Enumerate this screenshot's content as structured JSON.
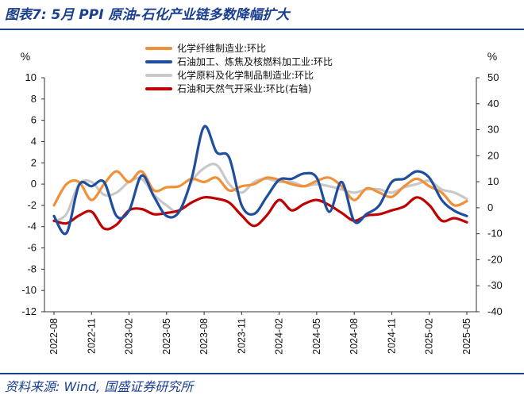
{
  "header": {
    "title": "图表7: 5月 PPI 原油-石化产业链多数降幅扩大"
  },
  "footer": {
    "source": "资料来源: Wind, 国盛证券研究所"
  },
  "chart_data": {
    "type": "line",
    "left_axis": {
      "unit": "%",
      "ylim": [
        -12,
        10
      ],
      "ticks": [
        10,
        8,
        6,
        4,
        2,
        0,
        -2,
        -4,
        -6,
        -8,
        -10,
        -12
      ]
    },
    "right_axis": {
      "unit": "%",
      "ylim": [
        -40,
        50
      ],
      "ticks": [
        50,
        40,
        30,
        20,
        10,
        0,
        -10,
        -20,
        -30,
        -40
      ]
    },
    "x": [
      "2022-08",
      "2022-09",
      "2022-10",
      "2022-11",
      "2022-12",
      "2023-01",
      "2023-02",
      "2023-03",
      "2023-04",
      "2023-05",
      "2023-06",
      "2023-07",
      "2023-08",
      "2023-09",
      "2023-10",
      "2023-11",
      "2023-12",
      "2024-01",
      "2024-02",
      "2024-03",
      "2024-04",
      "2024-05",
      "2024-06",
      "2024-07",
      "2024-08",
      "2024-09",
      "2024-10",
      "2024-11",
      "2024-12",
      "2025-01",
      "2025-02",
      "2025-03",
      "2025-04",
      "2025-05"
    ],
    "x_tick_labels": [
      "2022-08",
      "2022-11",
      "2023-02",
      "2023-05",
      "2023-08",
      "2023-11",
      "2024-02",
      "2024-05",
      "2024-08",
      "2024-11",
      "2025-02",
      "2025-05"
    ],
    "legend_position": "top",
    "series": [
      {
        "name": "化学纤维制造业:环比",
        "color": "#f0913a",
        "axis": "left",
        "values": [
          -2.0,
          0.0,
          0.2,
          -1.5,
          0.0,
          1.2,
          0.2,
          1.2,
          -0.6,
          -0.3,
          -0.2,
          0.5,
          0.2,
          0.6,
          -0.6,
          -0.2,
          0.0,
          0.6,
          0.4,
          0.0,
          -0.2,
          0.3,
          0.6,
          -0.2,
          -1.5,
          -0.4,
          -0.8,
          -1.2,
          -0.2,
          0.5,
          -0.2,
          -0.8,
          -2.0,
          -1.6
        ]
      },
      {
        "name": "石油加工、炼焦及核燃料加工业:环比",
        "color": "#1f4e9e",
        "axis": "left",
        "values": [
          -3.0,
          -4.6,
          -0.1,
          -0.2,
          0.2,
          -3.0,
          -2.5,
          0.8,
          -1.2,
          -3.0,
          -2.6,
          0.5,
          5.4,
          3.0,
          2.5,
          -2.0,
          -2.8,
          -1.2,
          0.4,
          0.5,
          1.0,
          0.6,
          -2.6,
          0.2,
          -3.5,
          -2.8,
          -2.0,
          0.2,
          0.5,
          1.2,
          0.6,
          -1.5,
          -2.5,
          -3.0
        ]
      },
      {
        "name": "化学原料及化学制品制造业:环比",
        "color": "#c8c8c8",
        "axis": "left",
        "values": [
          -3.5,
          -2.8,
          0.0,
          0.2,
          -1.0,
          -0.8,
          0.2,
          0.5,
          -1.0,
          -2.0,
          -2.5,
          0.2,
          1.5,
          1.8,
          0.0,
          -0.8,
          0.2,
          0.5,
          0.2,
          0.2,
          -0.2,
          0.0,
          -0.2,
          -0.5,
          -0.8,
          -0.5,
          -0.5,
          -0.8,
          -0.3,
          0.0,
          0.3,
          -0.5,
          -0.8,
          -1.4
        ]
      },
      {
        "name": "石油和天然气开采业:环比(右轴)",
        "color": "#c00000",
        "axis": "right",
        "values": [
          -5.0,
          -6.0,
          -3.0,
          -1.5,
          -8.0,
          -6.5,
          -1.0,
          -0.5,
          -2.5,
          -2.0,
          -1.0,
          2.0,
          4.0,
          3.5,
          2.0,
          -3.0,
          -7.0,
          -3.0,
          3.0,
          -1.0,
          1.5,
          3.0,
          1.0,
          -2.0,
          -5.0,
          -3.0,
          -2.5,
          -1.0,
          0.5,
          4.0,
          1.0,
          -5.0,
          -4.0,
          -5.6
        ]
      }
    ]
  }
}
